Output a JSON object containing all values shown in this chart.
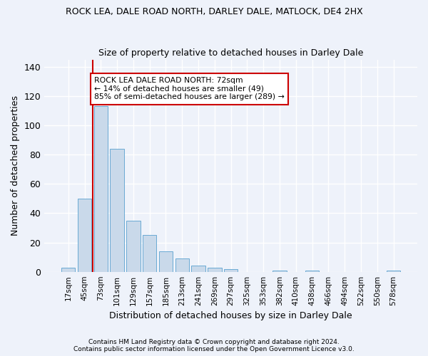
{
  "title": "ROCK LEA, DALE ROAD NORTH, DARLEY DALE, MATLOCK, DE4 2HX",
  "subtitle": "Size of property relative to detached houses in Darley Dale",
  "xlabel": "Distribution of detached houses by size in Darley Dale",
  "ylabel": "Number of detached properties",
  "bar_color": "#c9d9ea",
  "bar_edge_color": "#6aaad4",
  "background_color": "#eef2fa",
  "grid_color": "#ffffff",
  "categories": [
    "17sqm",
    "45sqm",
    "73sqm",
    "101sqm",
    "129sqm",
    "157sqm",
    "185sqm",
    "213sqm",
    "241sqm",
    "269sqm",
    "297sqm",
    "325sqm",
    "353sqm",
    "382sqm",
    "410sqm",
    "438sqm",
    "466sqm",
    "494sqm",
    "522sqm",
    "550sqm",
    "578sqm"
  ],
  "values": [
    3,
    50,
    113,
    84,
    35,
    25,
    14,
    9,
    4,
    3,
    2,
    0,
    0,
    1,
    0,
    1,
    0,
    0,
    0,
    0,
    1
  ],
  "vline_x": 1.5,
  "annotation_text": "ROCK LEA DALE ROAD NORTH: 72sqm\n← 14% of detached houses are smaller (49)\n85% of semi-detached houses are larger (289) →",
  "annotation_box_color": "#ffffff",
  "annotation_border_color": "#cc0000",
  "vline_color": "#cc0000",
  "ylim": [
    0,
    145
  ],
  "yticks": [
    0,
    20,
    40,
    60,
    80,
    100,
    120,
    140
  ],
  "footer1": "Contains HM Land Registry data © Crown copyright and database right 2024.",
  "footer2": "Contains public sector information licensed under the Open Government Licence v3.0."
}
